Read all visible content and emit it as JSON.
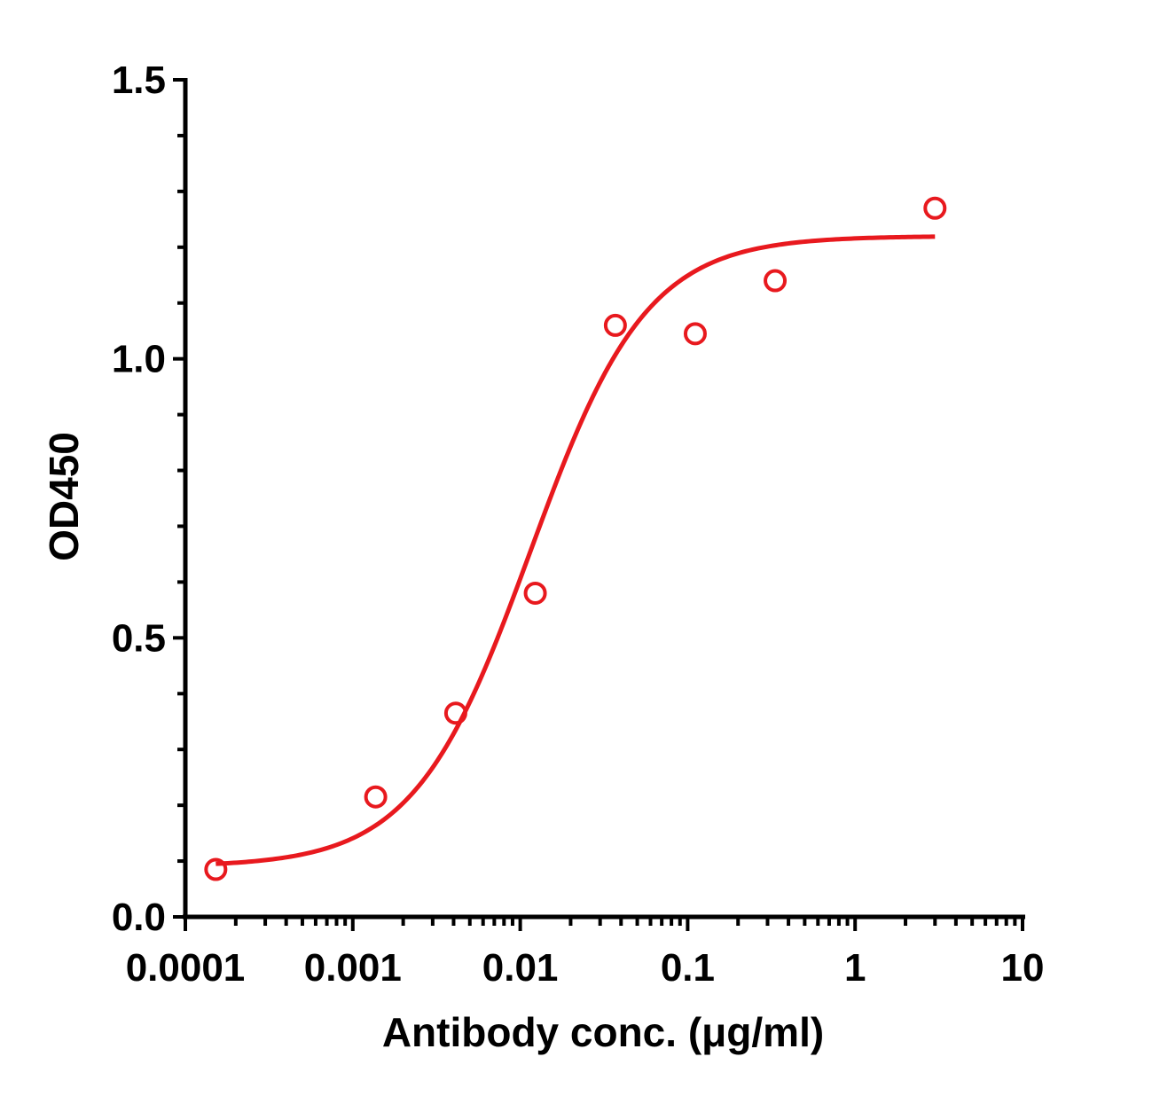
{
  "chart_data": {
    "type": "scatter",
    "title": "",
    "xlabel": "Antibody conc. (μg/ml)",
    "ylabel": "OD450",
    "x_scale": "log",
    "xlim": [
      0.0001,
      10
    ],
    "ylim": [
      0,
      1.5
    ],
    "x_tick_labels": [
      "0.0001",
      "0.001",
      "0.01",
      "0.1",
      "1",
      "10"
    ],
    "x_tick_values": [
      0.0001,
      0.001,
      0.01,
      0.1,
      1,
      10
    ],
    "y_tick_labels": [
      "0.0",
      "0.5",
      "1.0",
      "1.5"
    ],
    "y_tick_values": [
      0,
      0.5,
      1.0,
      1.5
    ],
    "y_minor_step": 0.1,
    "grid": false,
    "legend": "none",
    "color": "#e8191e",
    "series": [
      {
        "points": [
          {
            "x": 0.000152,
            "y": 0.085
          },
          {
            "x": 0.00137,
            "y": 0.215
          },
          {
            "x": 0.00412,
            "y": 0.365
          },
          {
            "x": 0.0123,
            "y": 0.58
          },
          {
            "x": 0.037,
            "y": 1.06
          },
          {
            "x": 0.111,
            "y": 1.045
          },
          {
            "x": 0.333,
            "y": 1.14
          },
          {
            "x": 3.0,
            "y": 1.27
          }
        ]
      }
    ],
    "fit_curve": {
      "model": "4PL",
      "bottom": 0.09,
      "top": 1.22,
      "ec50": 0.0115,
      "hill": 1.25,
      "x_range": [
        0.000152,
        3.0
      ]
    }
  }
}
